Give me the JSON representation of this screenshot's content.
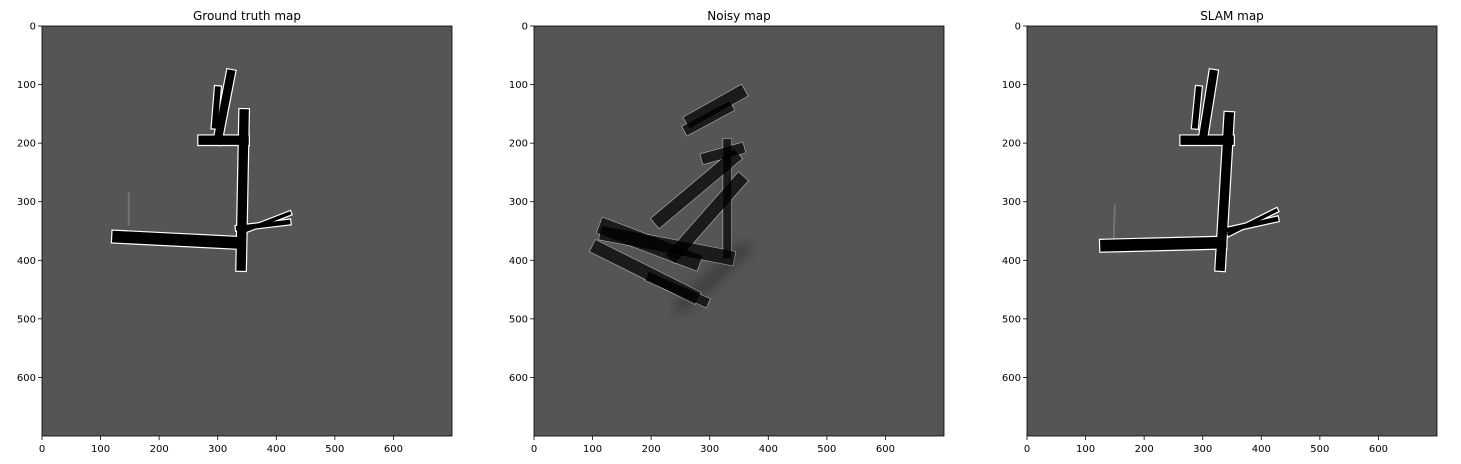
{
  "chart_data": [
    {
      "type": "heatmap",
      "title": "Ground truth map",
      "xlim": [
        0,
        700
      ],
      "ylim": [
        700,
        0
      ],
      "xticks": [
        0,
        100,
        200,
        300,
        400,
        500,
        600
      ],
      "yticks": [
        0,
        100,
        200,
        300,
        400,
        500,
        600
      ],
      "background_color": "#555555",
      "free_color": "#000000",
      "wall_color": "#ffffff",
      "corridors": [
        {
          "points": [
            [
              130,
              360
            ],
            [
              330,
              370
            ]
          ],
          "width": 20
        },
        {
          "points": [
            [
              340,
              410
            ],
            [
              345,
              150
            ]
          ],
          "width": 16
        },
        {
          "points": [
            [
              275,
              195
            ],
            [
              345,
              195
            ]
          ],
          "width": 16
        },
        {
          "points": [
            [
              300,
              195
            ],
            [
              322,
              82
            ]
          ],
          "width": 14
        },
        {
          "points": [
            [
              295,
              170
            ],
            [
              300,
              108
            ]
          ],
          "width": 10
        },
        {
          "points": [
            [
              335,
              345
            ],
            [
              420,
              335
            ]
          ],
          "width": 8
        },
        {
          "points": [
            [
              345,
              350
            ],
            [
              422,
              320
            ]
          ],
          "width": 6
        }
      ],
      "grey_streaks": [
        {
          "points": [
            [
              148,
              340
            ],
            [
              148,
              285
            ]
          ],
          "width": 3
        }
      ]
    },
    {
      "type": "heatmap",
      "title": "Noisy map",
      "xlim": [
        0,
        700
      ],
      "ylim": [
        700,
        0
      ],
      "xticks": [
        0,
        100,
        200,
        300,
        400,
        500,
        600
      ],
      "yticks": [
        0,
        100,
        200,
        300,
        400,
        500,
        600
      ],
      "background_color": "#555555",
      "free_color": "#000000",
      "wall_color": "#ffffff",
      "corridors": [
        {
          "points": [
            [
              125,
              345
            ],
            [
              270,
              400
            ]
          ],
          "width": 28
        },
        {
          "points": [
            [
              125,
              355
            ],
            [
              330,
              395
            ]
          ],
          "width": 24
        },
        {
          "points": [
            [
              110,
              380
            ],
            [
              270,
              460
            ]
          ],
          "width": 22
        },
        {
          "points": [
            [
              215,
              330
            ],
            [
              340,
              225
            ]
          ],
          "width": 22
        },
        {
          "points": [
            [
              240,
              390
            ],
            [
              350,
              265
            ]
          ],
          "width": 22
        },
        {
          "points": [
            [
              270,
              160
            ],
            [
              350,
              115
            ]
          ],
          "width": 22
        },
        {
          "points": [
            [
              265,
              175
            ],
            [
              330,
              140
            ]
          ],
          "width": 18
        },
        {
          "points": [
            [
              295,
              225
            ],
            [
              350,
              210
            ]
          ],
          "width": 18
        },
        {
          "points": [
            [
              330,
              200
            ],
            [
              330,
              390
            ]
          ],
          "width": 14
        },
        {
          "points": [
            [
              200,
              430
            ],
            [
              290,
              470
            ]
          ],
          "width": 16
        }
      ],
      "grey_streaks": [
        {
          "points": [
            [
              175,
              300
            ],
            [
              470,
              300
            ]
          ],
          "width": 50
        },
        {
          "points": [
            [
              230,
              230
            ],
            [
              400,
              230
            ]
          ],
          "width": 30
        },
        {
          "points": [
            [
              250,
              480
            ],
            [
              360,
              380
            ]
          ],
          "width": 20
        }
      ]
    },
    {
      "type": "heatmap",
      "title": "SLAM map",
      "xlim": [
        0,
        700
      ],
      "ylim": [
        700,
        0
      ],
      "xticks": [
        0,
        100,
        200,
        300,
        400,
        500,
        600
      ],
      "yticks": [
        0,
        100,
        200,
        300,
        400,
        500,
        600
      ],
      "background_color": "#555555",
      "free_color": "#000000",
      "wall_color": "#ffffff",
      "corridors": [
        {
          "points": [
            [
              135,
              375
            ],
            [
              330,
              370
            ]
          ],
          "width": 20
        },
        {
          "points": [
            [
              330,
              410
            ],
            [
              345,
              155
            ]
          ],
          "width": 16
        },
        {
          "points": [
            [
              270,
              195
            ],
            [
              345,
              195
            ]
          ],
          "width": 16
        },
        {
          "points": [
            [
              300,
              195
            ],
            [
              318,
              82
            ]
          ],
          "width": 14
        },
        {
          "points": [
            [
              287,
              170
            ],
            [
              293,
              108
            ]
          ],
          "width": 10
        },
        {
          "points": [
            [
              335,
              350
            ],
            [
              425,
              330
            ]
          ],
          "width": 8
        },
        {
          "points": [
            [
              345,
              355
            ],
            [
              425,
              315
            ]
          ],
          "width": 6
        }
      ],
      "grey_streaks": [
        {
          "points": [
            [
              148,
              365
            ],
            [
              150,
              305
            ]
          ],
          "width": 3
        }
      ]
    }
  ]
}
